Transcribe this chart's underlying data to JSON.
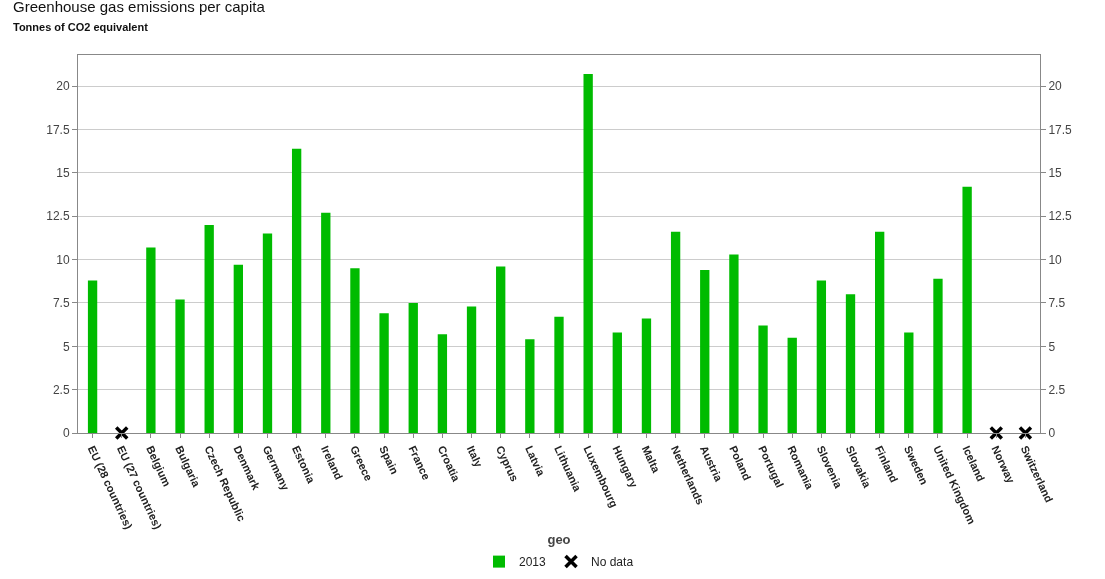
{
  "chart_data": {
    "type": "bar",
    "title": "Greenhouse gas emissions per capita",
    "subtitle": "Tonnes of CO2 equivalent",
    "xlabel": "geo",
    "categories": [
      "EU (28 countries)",
      "EU (27 countries)",
      "Belgium",
      "Bulgaria",
      "Czech Republic",
      "Denmark",
      "Germany",
      "Estonia",
      "Ireland",
      "Greece",
      "Spain",
      "France",
      "Croatia",
      "Italy",
      "Cyprus",
      "Latvia",
      "Lithuania",
      "Luxembourg",
      "Hungary",
      "Malta",
      "Netherlands",
      "Austria",
      "Poland",
      "Portugal",
      "Romania",
      "Slovenia",
      "Slovakia",
      "Finland",
      "Sweden",
      "United Kingdom",
      "Iceland",
      "Norway",
      "Switzerland"
    ],
    "series": [
      {
        "name": "2013",
        "color": "#00bb00",
        "values": [
          8.8,
          null,
          10.7,
          7.7,
          12.0,
          9.7,
          11.5,
          16.4,
          12.7,
          9.5,
          6.9,
          7.5,
          5.7,
          7.3,
          9.6,
          5.4,
          6.7,
          20.7,
          5.8,
          6.6,
          11.6,
          9.4,
          10.3,
          6.2,
          5.5,
          8.8,
          8.0,
          11.6,
          5.8,
          8.9,
          14.2,
          null,
          null
        ]
      },
      {
        "name": "No data",
        "type": "scatter",
        "axis": "y2",
        "marker": "cross",
        "color": "#000000",
        "values": [
          null,
          0,
          null,
          null,
          null,
          null,
          null,
          null,
          null,
          null,
          null,
          null,
          null,
          null,
          null,
          null,
          null,
          null,
          null,
          null,
          null,
          null,
          null,
          null,
          null,
          null,
          null,
          null,
          null,
          null,
          null,
          0,
          0
        ]
      }
    ],
    "ylim": [
      0,
      21.8
    ],
    "yticks": [
      0,
      {
        "value": 2.5,
        "label": "2.5"
      },
      5,
      {
        "value": 7.5,
        "label": "7.5"
      },
      10,
      {
        "value": 12.5,
        "label": "12.5"
      },
      15,
      {
        "value": 17.5,
        "label": "17.5"
      },
      20
    ],
    "y2lim": [
      0,
      21.8
    ],
    "y2ticks": [
      0,
      {
        "value": 2.5,
        "label": "2.5"
      },
      5,
      {
        "value": 7.5,
        "label": "7.5"
      },
      10,
      {
        "value": 12.5,
        "label": "12.5"
      },
      15,
      {
        "value": 17.5,
        "label": "17.5"
      },
      20
    ],
    "grid": "y",
    "legend": "bottom"
  }
}
